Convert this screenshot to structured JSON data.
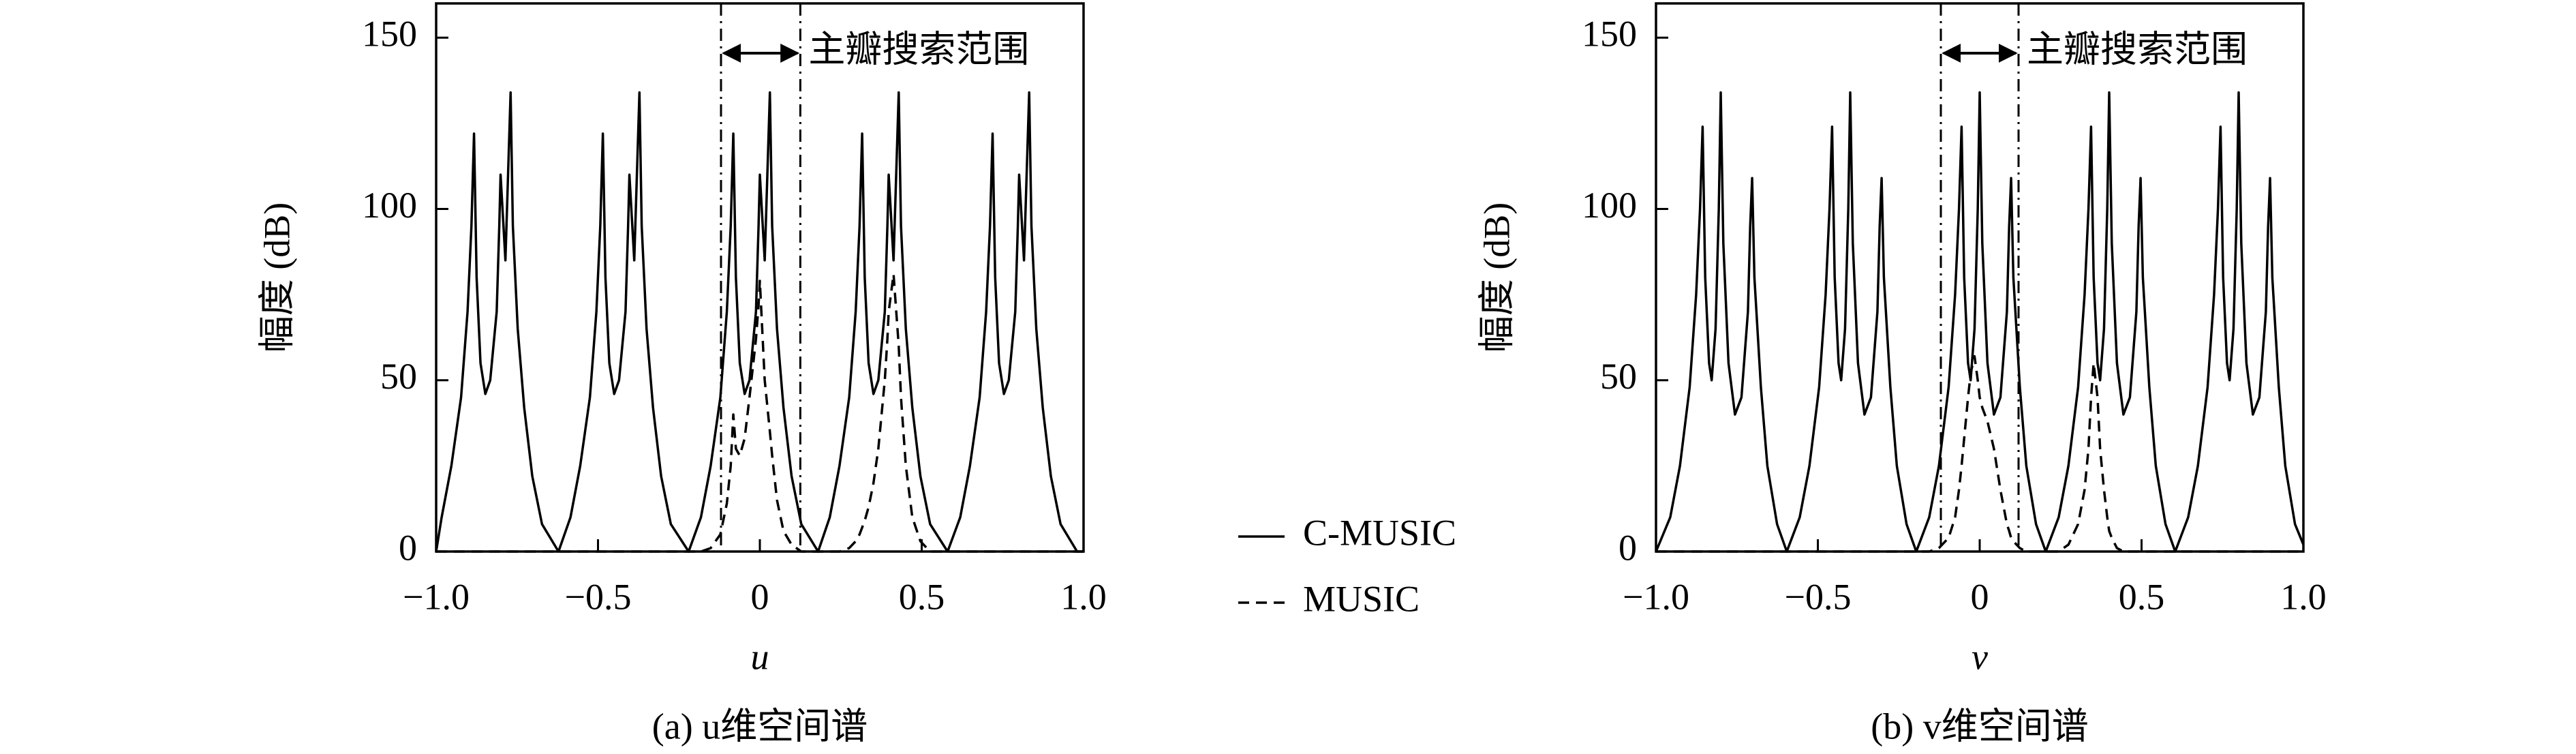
{
  "chart_data": [
    {
      "type": "line",
      "caption": "(a) u维空间谱",
      "xlabel": "u",
      "ylabel": "幅度 (dB)",
      "annotation": "主瓣搜索范围",
      "search_range": [
        -0.12,
        0.125
      ],
      "xlim": [
        -1,
        1
      ],
      "ylim": [
        0,
        160
      ],
      "xticks": [
        {
          "value": -1,
          "label": "−1.0"
        },
        {
          "value": -0.5,
          "label": "−0.5"
        },
        0,
        {
          "value": 0.5,
          "label": "0.5"
        },
        {
          "value": 1,
          "label": "1.0"
        }
      ],
      "yticks": [
        0,
        50,
        100,
        150
      ],
      "legend": "outside-right",
      "x": [
        -1,
        -0.983,
        -0.953,
        -0.923,
        -0.903,
        -0.891,
        -0.883,
        -0.875,
        -0.863,
        -0.848,
        -0.833,
        -0.813,
        -0.805,
        -0.801,
        -0.786,
        -0.77,
        -0.763,
        -0.748,
        -0.728,
        -0.703,
        -0.673,
        -0.622,
        -0.585,
        -0.555,
        -0.525,
        -0.505,
        -0.493,
        -0.485,
        -0.477,
        -0.465,
        -0.45,
        -0.435,
        -0.415,
        -0.407,
        -0.403,
        -0.388,
        -0.372,
        -0.365,
        -0.35,
        -0.33,
        -0.305,
        -0.275,
        -0.22,
        -0.182,
        -0.152,
        -0.122,
        -0.102,
        -0.09,
        -0.082,
        -0.074,
        -0.062,
        -0.047,
        -0.032,
        -0.012,
        -0.004,
        0,
        0.015,
        0.031,
        0.038,
        0.053,
        0.073,
        0.098,
        0.128,
        0.18,
        0.216,
        0.246,
        0.276,
        0.296,
        0.308,
        0.316,
        0.324,
        0.336,
        0.351,
        0.366,
        0.386,
        0.394,
        0.398,
        0.413,
        0.429,
        0.436,
        0.451,
        0.471,
        0.496,
        0.526,
        0.58,
        0.619,
        0.649,
        0.679,
        0.699,
        0.711,
        0.719,
        0.727,
        0.739,
        0.754,
        0.769,
        0.789,
        0.797,
        0.801,
        0.816,
        0.832,
        0.839,
        0.854,
        0.874,
        0.899,
        0.929,
        0.98,
        1
      ],
      "series": [
        {
          "name": "C-MUSIC",
          "color": "#000000",
          "linestyle": "solid",
          "values": [
            0,
            10,
            25,
            45,
            70,
            95,
            122,
            80,
            55,
            46,
            50,
            70,
            95,
            110,
            85,
            134,
            95,
            65,
            42,
            22,
            8,
            0,
            10,
            25,
            45,
            70,
            95,
            122,
            80,
            55,
            46,
            50,
            70,
            95,
            110,
            85,
            134,
            95,
            65,
            42,
            22,
            8,
            0,
            10,
            25,
            45,
            70,
            95,
            122,
            80,
            55,
            46,
            50,
            70,
            95,
            110,
            85,
            134,
            95,
            65,
            42,
            22,
            8,
            0,
            10,
            25,
            45,
            70,
            95,
            122,
            80,
            55,
            46,
            50,
            70,
            95,
            110,
            85,
            134,
            95,
            65,
            42,
            22,
            8,
            0,
            10,
            25,
            45,
            70,
            95,
            122,
            80,
            55,
            46,
            50,
            70,
            95,
            110,
            85,
            134,
            95,
            65,
            42,
            22,
            8,
            0,
            0
          ]
        },
        {
          "name": "MUSIC",
          "color": "#000000",
          "linestyle": "dashed",
          "values": [
            0,
            0,
            0,
            0,
            0,
            0,
            0,
            0,
            0,
            0,
            0,
            0,
            0,
            0,
            0,
            0,
            0,
            0,
            0,
            0,
            0,
            0,
            0,
            0,
            0,
            0,
            0,
            0,
            0,
            0,
            0,
            0,
            0,
            0,
            0,
            0,
            0,
            0,
            0,
            0,
            0,
            0,
            0,
            0,
            1,
            5,
            14,
            25,
            40,
            30,
            28,
            33,
            45,
            62,
            72,
            79,
            50,
            35,
            28,
            15,
            6,
            2,
            0,
            0,
            0,
            0,
            1,
            3,
            5,
            7,
            9,
            13,
            20,
            30,
            50,
            62,
            70,
            81,
            60,
            45,
            25,
            10,
            3,
            0,
            0,
            0,
            0,
            0,
            0,
            0,
            0,
            0,
            0,
            0,
            0,
            0,
            0,
            0,
            0,
            0,
            0,
            0,
            0,
            0,
            0,
            0,
            0
          ]
        }
      ]
    },
    {
      "type": "line",
      "caption": "(b) v维空间谱",
      "xlabel": "v",
      "ylabel": "幅度 (dB)",
      "annotation": "主瓣搜索范围",
      "search_range": [
        -0.12,
        0.12
      ],
      "xlim": [
        -1,
        1
      ],
      "ylim": [
        0,
        160
      ],
      "xticks": [
        {
          "value": -1,
          "label": "−1.0"
        },
        {
          "value": -0.5,
          "label": "−0.5"
        },
        0,
        {
          "value": 0.5,
          "label": "0.5"
        },
        {
          "value": 1,
          "label": "1.0"
        }
      ],
      "yticks": [
        0,
        50,
        100,
        150
      ],
      "x": [
        -1,
        -0.956,
        -0.926,
        -0.896,
        -0.876,
        -0.864,
        -0.856,
        -0.848,
        -0.836,
        -0.828,
        -0.816,
        -0.806,
        -0.8,
        -0.792,
        -0.776,
        -0.756,
        -0.736,
        -0.716,
        -0.709,
        -0.703,
        -0.696,
        -0.676,
        -0.656,
        -0.626,
        -0.596,
        -0.556,
        -0.526,
        -0.496,
        -0.476,
        -0.464,
        -0.456,
        -0.448,
        -0.436,
        -0.428,
        -0.416,
        -0.406,
        -0.4,
        -0.392,
        -0.376,
        -0.356,
        -0.336,
        -0.316,
        -0.309,
        -0.303,
        -0.296,
        -0.276,
        -0.256,
        -0.226,
        -0.196,
        -0.156,
        -0.126,
        -0.096,
        -0.076,
        -0.064,
        -0.056,
        -0.048,
        -0.036,
        -0.028,
        -0.016,
        -0.006,
        0,
        0.008,
        0.024,
        0.044,
        0.064,
        0.084,
        0.091,
        0.097,
        0.104,
        0.124,
        0.144,
        0.174,
        0.204,
        0.244,
        0.274,
        0.304,
        0.324,
        0.336,
        0.344,
        0.352,
        0.364,
        0.372,
        0.384,
        0.394,
        0.4,
        0.408,
        0.424,
        0.444,
        0.464,
        0.484,
        0.491,
        0.497,
        0.504,
        0.524,
        0.544,
        0.574,
        0.604,
        0.644,
        0.674,
        0.704,
        0.724,
        0.736,
        0.744,
        0.752,
        0.764,
        0.772,
        0.784,
        0.794,
        0.8,
        0.808,
        0.824,
        0.844,
        0.864,
        0.884,
        0.891,
        0.897,
        0.904,
        0.924,
        0.944,
        0.974,
        1
      ],
      "series": [
        {
          "color": "#000000",
          "linestyle": "solid",
          "values": [
            0,
            10,
            25,
            48,
            75,
            100,
            124,
            80,
            55,
            50,
            65,
            100,
            134,
            90,
            55,
            40,
            45,
            70,
            95,
            109,
            80,
            48,
            25,
            8,
            0,
            10,
            25,
            48,
            75,
            100,
            124,
            80,
            55,
            50,
            65,
            100,
            134,
            90,
            55,
            40,
            45,
            70,
            95,
            109,
            80,
            48,
            25,
            8,
            0,
            10,
            25,
            48,
            75,
            100,
            124,
            80,
            55,
            50,
            65,
            100,
            134,
            90,
            55,
            40,
            45,
            70,
            95,
            109,
            80,
            48,
            25,
            8,
            0,
            10,
            25,
            48,
            75,
            100,
            124,
            80,
            55,
            50,
            65,
            100,
            134,
            90,
            55,
            40,
            45,
            70,
            95,
            109,
            80,
            48,
            25,
            8,
            0,
            10,
            25,
            48,
            75,
            100,
            124,
            80,
            55,
            50,
            65,
            100,
            134,
            90,
            55,
            40,
            45,
            70,
            95,
            109,
            80,
            48,
            25,
            8,
            2
          ]
        },
        {
          "color": "#000000",
          "linestyle": "dashed",
          "values": [
            0,
            0,
            0,
            0,
            0,
            0,
            0,
            0,
            0,
            0,
            0,
            0,
            0,
            0,
            0,
            0,
            0,
            0,
            0,
            0,
            0,
            0,
            0,
            0,
            0,
            0,
            0,
            0,
            0,
            0,
            0,
            0,
            0,
            0,
            0,
            0,
            0,
            0,
            0,
            0,
            0,
            0,
            0,
            0,
            0,
            0,
            0,
            0,
            0,
            0,
            1,
            4,
            10,
            18,
            25,
            33,
            45,
            52,
            57,
            50,
            45,
            42,
            38,
            30,
            18,
            8,
            6,
            4,
            3,
            1,
            0,
            0,
            0,
            0,
            2,
            8,
            18,
            30,
            45,
            55,
            45,
            30,
            18,
            10,
            6,
            4,
            1,
            0,
            0,
            0,
            0,
            0,
            0,
            0,
            0,
            0,
            0,
            0,
            0,
            0,
            0,
            0,
            0,
            0,
            0,
            0,
            0,
            0,
            0,
            0,
            0,
            0,
            0,
            0,
            0,
            0,
            0,
            0,
            0,
            0,
            0
          ]
        }
      ]
    }
  ]
}
